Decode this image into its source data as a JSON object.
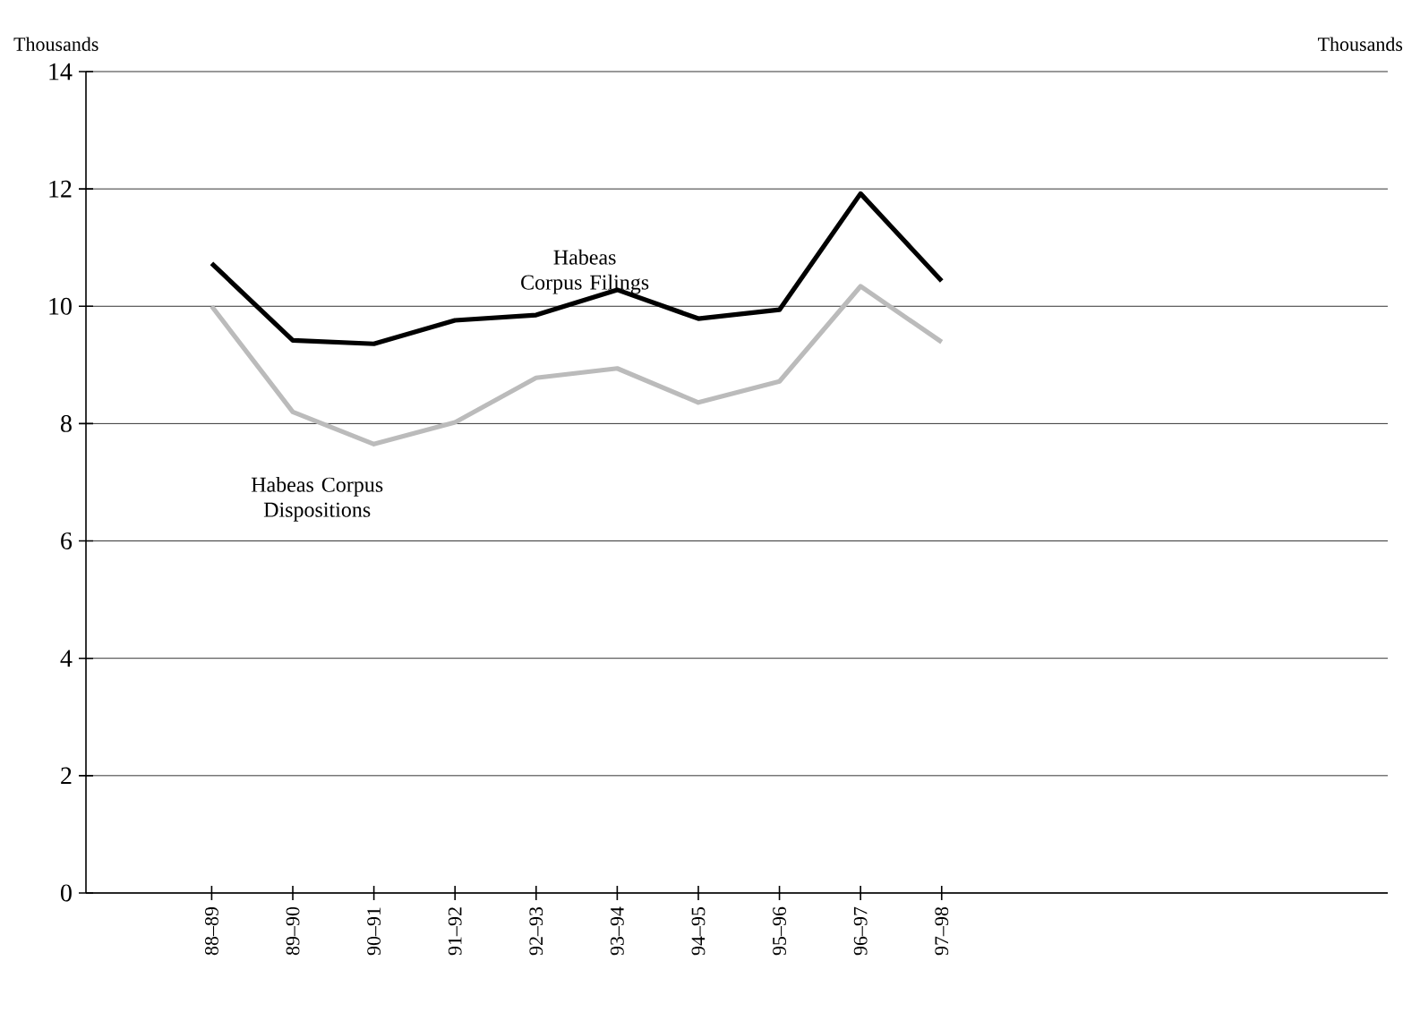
{
  "chart_data": {
    "type": "line",
    "ylabel": "Thousands",
    "annotations": [
      "Thousands"
    ],
    "categories": [
      "88–89",
      "89–90",
      "90–91",
      "91–92",
      "92–93",
      "93–94",
      "94–95",
      "95–96",
      "96–97",
      "97–98"
    ],
    "series": [
      {
        "name": "Habeas Corpus Filings",
        "color": "#000000",
        "values": [
          10.73,
          9.42,
          9.36,
          9.76,
          9.85,
          10.28,
          9.79,
          9.94,
          11.92,
          10.43
        ]
      },
      {
        "name": "Habeas Corpus Dispositions",
        "color": "#bbbbbb",
        "values": [
          10.0,
          8.2,
          7.65,
          8.02,
          8.78,
          8.94,
          8.36,
          8.72,
          10.34,
          9.39
        ]
      }
    ],
    "ylim": [
      0,
      14
    ],
    "yticks": [
      0,
      2,
      4,
      6,
      8,
      10,
      12,
      14
    ],
    "grid": "y",
    "marker": "none",
    "line_style": "solid"
  }
}
